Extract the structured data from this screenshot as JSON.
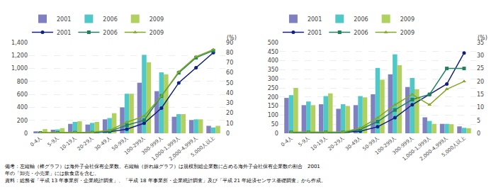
{
  "chart_data": [
    {
      "type": "bar",
      "categories": [
        "0-4人",
        "5-9人",
        "10-19人",
        "20-29人",
        "30-49人",
        "50-99人",
        "100-299人",
        "300-999人",
        "1,000-1,999人",
        "2,000-4,999人",
        "5,000人以上"
      ],
      "series": [
        {
          "name": "2001",
          "type": "bar",
          "color": "#8080c0",
          "values": [
            30,
            55,
            145,
            135,
            215,
            400,
            780,
            650,
            255,
            205,
            115
          ]
        },
        {
          "name": "2006",
          "type": "bar",
          "color": "#50c8c8",
          "values": [
            20,
            60,
            175,
            160,
            235,
            610,
            1210,
            940,
            295,
            215,
            90
          ]
        },
        {
          "name": "2009",
          "type": "bar",
          "color": "#b0d060",
          "values": [
            65,
            80,
            185,
            175,
            310,
            610,
            1095,
            910,
            295,
            215,
            115
          ]
        },
        {
          "name": "2001",
          "type": "line",
          "axis": "y2",
          "color": "#102080",
          "marker": "circle",
          "values": [
            0.3,
            0.3,
            0.5,
            0.5,
            1.5,
            4,
            10,
            25,
            50,
            65,
            80
          ]
        },
        {
          "name": "2006",
          "type": "line",
          "axis": "y2",
          "color": "#208060",
          "marker": "square",
          "values": [
            0.3,
            0.3,
            0.5,
            0.5,
            2,
            8,
            13,
            37,
            60,
            75,
            82
          ]
        },
        {
          "name": "2009",
          "type": "line",
          "axis": "y2",
          "color": "#80a820",
          "marker": "triangle",
          "values": [
            0.5,
            0.5,
            1,
            1,
            3,
            11,
            17,
            37,
            61,
            76,
            83
          ]
        }
      ],
      "ylim": [
        0,
        1400
      ],
      "yticks": [
        0,
        200,
        400,
        600,
        800,
        {
          "value": 1000,
          "label": "1,000"
        },
        {
          "value": 1200,
          "label": "1,200"
        },
        {
          "value": 1400,
          "label": "1,400"
        }
      ],
      "y2lim": [
        0,
        90
      ],
      "y2ticks": [
        0,
        10,
        20,
        30,
        40,
        50,
        60,
        70,
        80,
        90
      ],
      "y2label": "(%)",
      "grid": true,
      "legend": "upper left"
    },
    {
      "type": "bar",
      "categories": [
        "0-4人",
        "5-9人",
        "10-19人",
        "20-29人",
        "30-49人",
        "50-99人",
        "100-299人",
        "300-999人",
        "1,000-1,999人",
        "2,000-4,999人",
        "5,000人以上"
      ],
      "series": [
        {
          "name": "2001",
          "type": "bar",
          "color": "#8080c0",
          "values": [
            195,
            155,
            160,
            135,
            155,
            215,
            325,
            255,
            88,
            52,
            38
          ]
        },
        {
          "name": "2006",
          "type": "bar",
          "color": "#50c8c8",
          "values": [
            210,
            175,
            205,
            160,
            205,
            360,
            435,
            305,
            68,
            52,
            30
          ]
        },
        {
          "name": "2009",
          "type": "bar",
          "color": "#b0d060",
          "values": [
            250,
            155,
            220,
            150,
            198,
            295,
            375,
            243,
            52,
            50,
            28
          ]
        },
        {
          "name": "2001",
          "type": "line",
          "axis": "y2",
          "color": "#102080",
          "marker": "circle",
          "values": [
            0.3,
            0.3,
            0.3,
            0.3,
            0.8,
            2.5,
            6,
            11,
            15,
            19,
            31
          ]
        },
        {
          "name": "2006",
          "type": "line",
          "axis": "y2",
          "color": "#208060",
          "marker": "square",
          "values": [
            0.3,
            0.3,
            0.3,
            0.3,
            1.5,
            4.5,
            9,
            13,
            15,
            25,
            25
          ]
        },
        {
          "name": "2009",
          "type": "line",
          "axis": "y2",
          "color": "#80a820",
          "marker": "triangle",
          "values": [
            0.5,
            0.5,
            0.5,
            0.5,
            2,
            6,
            11,
            15,
            11,
            17,
            20
          ]
        }
      ],
      "ylim": [
        0,
        500
      ],
      "yticks": [
        0,
        50,
        100,
        150,
        200,
        250,
        300,
        350,
        400,
        450,
        500
      ],
      "y2lim": [
        0,
        35
      ],
      "y2ticks": [
        0,
        5,
        10,
        15,
        20,
        25,
        30,
        35
      ],
      "y2label": "(%)",
      "grid": true,
      "legend": "upper left"
    }
  ],
  "annotations": [
    "備考：左縦軸（棒グラフ）は海外子会社保有企業数。右縦軸（折れ線グラフ）は規模別総企業数に占める海外子会社保有企業数の割合　2001",
    "年の「卸売・小売業」には飲食店を含む。",
    "資料：総務省「平成 13 年事業所・企業統計調査」、「平成 18 年事業所・企業統計調査」及び「平成 21 年経済センサス基礎調査」から作成。"
  ]
}
